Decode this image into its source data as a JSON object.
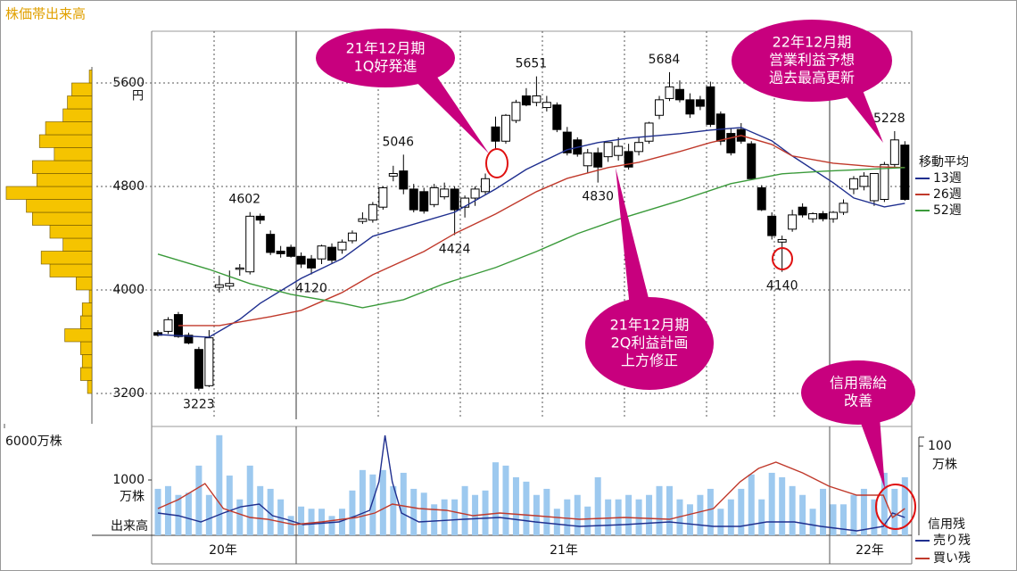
{
  "title": "株価帯出来高",
  "chart_data": {
    "type": "candlestick",
    "ylim": [
      3000,
      6000
    ],
    "yticks": [
      3200,
      4000,
      4800,
      5600
    ],
    "y_unit": "円",
    "grid": true,
    "up_color": "#ffffff",
    "down_color": "#000000",
    "open": [
      3670,
      3680,
      3810,
      3650,
      3540,
      3260,
      4020,
      4030,
      4160,
      4140,
      4570,
      4430,
      4300,
      4330,
      4260,
      4240,
      4240,
      4330,
      4310,
      4380,
      4530,
      4540,
      4640,
      4880,
      4920,
      4780,
      4760,
      4660,
      4720,
      4780,
      4640,
      4710,
      4760,
      5260,
      5150,
      5310,
      5500,
      5450,
      5410,
      5430,
      5220,
      5160,
      4960,
      5060,
      5030,
      5040,
      5070,
      5070,
      5150,
      5350,
      5480,
      5550,
      5470,
      5470,
      5570,
      5360,
      5210,
      5240,
      5130,
      4790,
      4570,
      4370,
      4470,
      4640,
      4550,
      4590,
      4550,
      4600,
      4780,
      4800,
      4690,
      4700,
      4970,
      5120
    ],
    "high": [
      3690,
      3790,
      3830,
      3670,
      3560,
      3690,
      4110,
      4150,
      4200,
      4602,
      4590,
      4460,
      4340,
      4350,
      4290,
      4270,
      4350,
      4360,
      4390,
      4460,
      4600,
      4680,
      4800,
      4960,
      5046,
      4820,
      4790,
      4820,
      4830,
      4800,
      4730,
      4800,
      4900,
      5340,
      5360,
      5470,
      5560,
      5651,
      5500,
      5450,
      5260,
      5180,
      5090,
      5100,
      5140,
      5180,
      5130,
      5180,
      5300,
      5500,
      5684,
      5620,
      5520,
      5500,
      5610,
      5380,
      5250,
      5290,
      5150,
      4810,
      4600,
      4420,
      4620,
      4670,
      4600,
      4610,
      4610,
      4700,
      4880,
      4910,
      4900,
      4990,
      5228,
      5150
    ],
    "low": [
      3640,
      3660,
      3630,
      3580,
      3223,
      3250,
      3980,
      4000,
      4110,
      4120,
      4510,
      4270,
      4250,
      4250,
      4170,
      4120,
      4200,
      4200,
      4280,
      4360,
      4510,
      4520,
      4620,
      4840,
      4740,
      4600,
      4590,
      4640,
      4700,
      4424,
      4560,
      4650,
      4740,
      5090,
      5130,
      5290,
      5420,
      5420,
      5380,
      5220,
      5040,
      5030,
      4900,
      4830,
      4990,
      5000,
      4930,
      5040,
      5130,
      5320,
      5460,
      5450,
      5330,
      5390,
      5260,
      5120,
      5040,
      5130,
      4850,
      4610,
      4390,
      4140,
      4450,
      4560,
      4520,
      4530,
      4520,
      4580,
      4740,
      4770,
      4650,
      4680,
      4940,
      4690
    ],
    "close": [
      3650,
      3770,
      3640,
      3590,
      3240,
      3630,
      4040,
      4050,
      4170,
      4570,
      4540,
      4290,
      4280,
      4260,
      4200,
      4170,
      4340,
      4230,
      4370,
      4440,
      4550,
      4660,
      4790,
      4900,
      4780,
      4620,
      4610,
      4790,
      4780,
      4620,
      4710,
      4780,
      4860,
      5150,
      5350,
      5450,
      5430,
      5500,
      5450,
      5240,
      5060,
      5050,
      5060,
      4950,
      5140,
      5110,
      4950,
      5140,
      5290,
      5470,
      5570,
      5470,
      5360,
      5420,
      5280,
      5150,
      5060,
      5150,
      4860,
      4620,
      4420,
      4390,
      4580,
      4580,
      4590,
      4550,
      4600,
      4670,
      4860,
      4880,
      4900,
      4970,
      5160,
      4700
    ],
    "x_labels": [
      "20年",
      "21年",
      "22年"
    ],
    "moving_average_title": "移動平均",
    "moving_averages": [
      {
        "name": "13週",
        "color": "#1f2f8f",
        "x": [
          0,
          5,
          8,
          10,
          14,
          18,
          21,
          26,
          29,
          33,
          36,
          40,
          43,
          46,
          51,
          54,
          57,
          60,
          62,
          66,
          68,
          71,
          73
        ],
        "values": [
          3655,
          3635,
          3773,
          3897,
          4090,
          4242,
          4415,
          4532,
          4601,
          4780,
          4932,
          5084,
          5139,
          5174,
          5208,
          5236,
          5256,
          5153,
          5036,
          4829,
          4711,
          4642,
          4670
        ]
      },
      {
        "name": "26週",
        "color": "#c0392b",
        "x": [
          2,
          6,
          11,
          14,
          18,
          21,
          26,
          29,
          33,
          37,
          40,
          44,
          47,
          51,
          54,
          57,
          60,
          62,
          66,
          70,
          73
        ],
        "values": [
          3725,
          3725,
          3794,
          3842,
          3980,
          4118,
          4297,
          4435,
          4587,
          4760,
          4863,
          4946,
          4987,
          5070,
          5139,
          5194,
          5125,
          5036,
          4980,
          4953,
          4946
        ]
      },
      {
        "name": "52週",
        "color": "#3a9a3a",
        "x": [
          0,
          5,
          9,
          13,
          18,
          20,
          24,
          28,
          33,
          37,
          41,
          45,
          51,
          56,
          61,
          65,
          69,
          73
        ],
        "values": [
          4277,
          4159,
          4049,
          3966,
          3897,
          3863,
          3925,
          4049,
          4173,
          4297,
          4435,
          4546,
          4691,
          4822,
          4898,
          4918,
          4932,
          4946
        ]
      }
    ],
    "price_band": {
      "color": "#f5c400",
      "bins": [
        3200,
        3300,
        3400,
        3500,
        3600,
        3700,
        3800,
        3900,
        4000,
        4100,
        4200,
        4300,
        4400,
        4500,
        4600,
        4700,
        4800,
        4900,
        5000,
        5100,
        5200,
        5300,
        5400,
        5500,
        5600,
        5700
      ],
      "values": [
        300,
        780,
        660,
        780,
        1860,
        780,
        660,
        180,
        1080,
        2880,
        3480,
        1980,
        2880,
        4080,
        4500,
        5880,
        3780,
        4080,
        2580,
        3600,
        3180,
        1980,
        1680,
        1380,
        180
      ],
      "xlim": [
        0,
        6000
      ],
      "xticks": [
        {
          "value": 6000,
          "label": "6000万株"
        }
      ]
    },
    "volume": {
      "label": "出来高",
      "unit": "万株",
      "color": "#9dc9ef",
      "ylim": [
        0,
        2000
      ],
      "yticks": [
        1000
      ],
      "values": [
        840,
        890,
        730,
        770,
        1260,
        730,
        1810,
        1080,
        650,
        1260,
        890,
        840,
        650,
        350,
        520,
        480,
        480,
        350,
        480,
        810,
        1180,
        1100,
        1180,
        890,
        1130,
        840,
        770,
        560,
        650,
        650,
        890,
        730,
        810,
        1320,
        1260,
        1050,
        970,
        730,
        840,
        480,
        650,
        730,
        520,
        1050,
        650,
        650,
        730,
        650,
        730,
        890,
        890,
        650,
        560,
        730,
        840,
        480,
        650,
        840,
        1100,
        650,
        1130,
        1050,
        890,
        730,
        480,
        840,
        560,
        560,
        730,
        840,
        650,
        1130,
        840,
        1050
      ]
    },
    "credit": {
      "label": "信用残",
      "unit": "万株",
      "y2lim": [
        0,
        120
      ],
      "y2ticks": [
        100
      ],
      "series": [
        {
          "name": "売り残",
          "color": "#1f2f8f",
          "axis": "y2",
          "x": [
            0,
            2,
            4.2,
            6.4,
            8.1,
            9.9,
            11.2,
            12.5,
            14.2,
            17.7,
            19.4,
            20.7,
            21.6,
            22.2,
            22.9,
            23.8,
            25.5,
            29.9,
            33.4,
            36.9,
            41.2,
            45.6,
            50,
            54.3,
            56.9,
            59.5,
            62.2,
            64.8,
            68.3,
            70.9,
            71.8,
            73
          ],
          "values": [
            25,
            22,
            15,
            25,
            32,
            35,
            22,
            18,
            12,
            15,
            22,
            28,
            60,
            112,
            60,
            25,
            15,
            18,
            20,
            15,
            10,
            12,
            15,
            10,
            10,
            15,
            15,
            10,
            5,
            10,
            25,
            20
          ]
        },
        {
          "name": "買い残",
          "color": "#c0392b",
          "axis": "y2",
          "x": [
            0,
            2,
            4.6,
            6.4,
            9,
            10.7,
            13.3,
            16,
            19.4,
            21.2,
            22.9,
            25.5,
            28.2,
            30.8,
            33.4,
            36.9,
            41.2,
            45.6,
            50,
            54.3,
            56.9,
            58.7,
            60.4,
            63,
            65.6,
            68.3,
            70.9,
            71.8,
            73
          ],
          "values": [
            30,
            40,
            58,
            30,
            20,
            18,
            12,
            15,
            20,
            25,
            35,
            30,
            28,
            22,
            25,
            22,
            18,
            20,
            18,
            30,
            60,
            75,
            82,
            70,
            55,
            45,
            45,
            20,
            30
          ]
        }
      ]
    },
    "annotations": [
      {
        "lines": [
          "21年12月期",
          "1Q好発進"
        ]
      },
      {
        "lines": [
          "21年12月期",
          "2Q利益計画",
          "上方修正"
        ]
      },
      {
        "lines": [
          "22年12月期",
          "営業利益予想",
          "過去最高更新"
        ]
      },
      {
        "lines": [
          "信用需給",
          "改善"
        ]
      }
    ]
  }
}
